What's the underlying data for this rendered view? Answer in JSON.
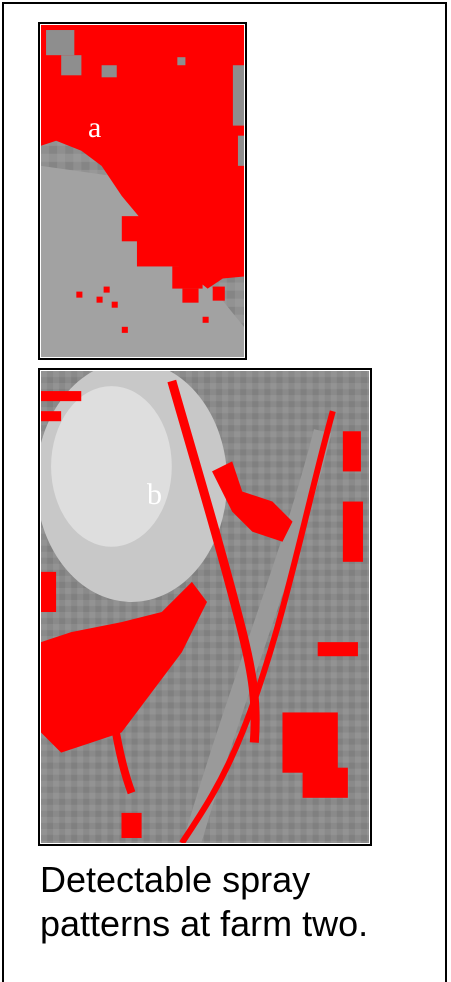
{
  "panels": {
    "a": {
      "label": "a"
    },
    "b": {
      "label": "b"
    }
  },
  "caption": "Detectable spray patterns at farm two.",
  "colors": {
    "spray_detection": "#ff0000",
    "ground": "#8c8c8c",
    "border": "#000000"
  }
}
